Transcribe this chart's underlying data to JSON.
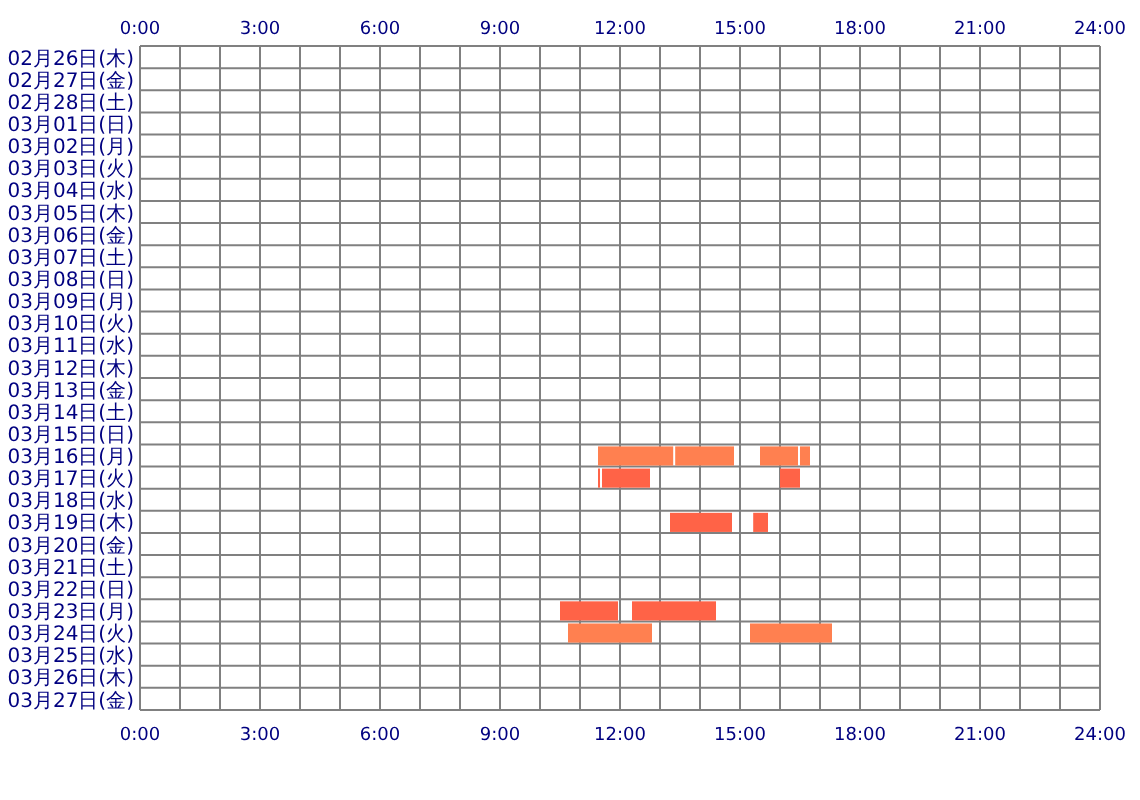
{
  "chart_data": {
    "type": "bar",
    "orientation": "horizontal",
    "grid": true,
    "categories": [
      "02月26日(木)",
      "02月27日(金)",
      "02月28日(土)",
      "03月01日(日)",
      "03月02日(月)",
      "03月03日(火)",
      "03月04日(水)",
      "03月05日(木)",
      "03月06日(金)",
      "03月07日(土)",
      "03月08日(日)",
      "03月09日(月)",
      "03月10日(火)",
      "03月11日(水)",
      "03月12日(木)",
      "03月13日(金)",
      "03月14日(土)",
      "03月15日(日)",
      "03月16日(月)",
      "03月17日(火)",
      "03月18日(水)",
      "03月19日(木)",
      "03月20日(金)",
      "03月21日(土)",
      "03月22日(日)",
      "03月23日(月)",
      "03月24日(火)",
      "03月25日(水)",
      "03月26日(木)",
      "03月27日(金)"
    ],
    "xlim": [
      0,
      24
    ],
    "xticks": [
      {
        "value": 0,
        "label": "0:00"
      },
      {
        "value": 1,
        "label": null
      },
      {
        "value": 2,
        "label": null
      },
      {
        "value": 3,
        "label": "3:00"
      },
      {
        "value": 4,
        "label": null
      },
      {
        "value": 5,
        "label": null
      },
      {
        "value": 6,
        "label": "6:00"
      },
      {
        "value": 7,
        "label": null
      },
      {
        "value": 8,
        "label": null
      },
      {
        "value": 9,
        "label": "9:00"
      },
      {
        "value": 10,
        "label": null
      },
      {
        "value": 11,
        "label": null
      },
      {
        "value": 12,
        "label": "12:00"
      },
      {
        "value": 13,
        "label": null
      },
      {
        "value": 14,
        "label": null
      },
      {
        "value": 15,
        "label": "15:00"
      },
      {
        "value": 16,
        "label": null
      },
      {
        "value": 17,
        "label": null
      },
      {
        "value": 18,
        "label": "18:00"
      },
      {
        "value": 19,
        "label": null
      },
      {
        "value": 20,
        "label": null
      },
      {
        "value": 21,
        "label": "21:00"
      },
      {
        "value": 22,
        "label": null
      },
      {
        "value": 23,
        "label": null
      },
      {
        "value": 24,
        "label": "24:00"
      }
    ],
    "x2lim": [
      0,
      24
    ],
    "x2ticks": [
      {
        "value": 0,
        "label": "0:00"
      },
      {
        "value": 3,
        "label": "3:00"
      },
      {
        "value": 6,
        "label": "6:00"
      },
      {
        "value": 9,
        "label": "9:00"
      },
      {
        "value": 12,
        "label": "12:00"
      },
      {
        "value": 15,
        "label": "15:00"
      },
      {
        "value": 18,
        "label": "18:00"
      },
      {
        "value": 21,
        "label": "21:00"
      },
      {
        "value": 24,
        "label": "24:00"
      }
    ],
    "series": [
      {
        "values": [
          null,
          null,
          null,
          null,
          null,
          null,
          null,
          null,
          null,
          null,
          null,
          null,
          null,
          null,
          null,
          null,
          null,
          null,
          1.88,
          0.05,
          null,
          1.55,
          null,
          null,
          null,
          1.45,
          2.1,
          null,
          null,
          null
        ],
        "base": [
          null,
          null,
          null,
          null,
          null,
          null,
          null,
          null,
          null,
          null,
          null,
          null,
          null,
          null,
          null,
          null,
          null,
          null,
          11.45,
          11.45,
          null,
          13.25,
          null,
          null,
          null,
          10.5,
          10.7,
          null,
          null,
          null
        ],
        "colors": [
          null,
          null,
          null,
          null,
          null,
          null,
          null,
          null,
          null,
          null,
          null,
          null,
          null,
          null,
          null,
          null,
          null,
          null,
          "#ff8050",
          "#ff6347",
          null,
          "#ff6347",
          null,
          null,
          null,
          "#ff6347",
          "#ff8050",
          null,
          null,
          null
        ]
      },
      {
        "values": [
          null,
          null,
          null,
          null,
          null,
          null,
          null,
          null,
          null,
          null,
          null,
          null,
          null,
          null,
          null,
          null,
          null,
          null,
          1.47,
          1.2,
          null,
          0.37,
          null,
          null,
          null,
          2.1,
          2.05,
          null,
          null,
          null
        ],
        "base": [
          null,
          null,
          null,
          null,
          null,
          null,
          null,
          null,
          null,
          null,
          null,
          null,
          null,
          null,
          null,
          null,
          null,
          null,
          13.38,
          11.55,
          null,
          15.33,
          null,
          null,
          null,
          12.3,
          15.25,
          null,
          null,
          null
        ],
        "colors": [
          null,
          null,
          null,
          null,
          null,
          null,
          null,
          null,
          null,
          null,
          null,
          null,
          null,
          null,
          null,
          null,
          null,
          null,
          "#ff8050",
          "#ff6347",
          null,
          "#ff6347",
          null,
          null,
          null,
          "#ff6347",
          "#ff8050",
          null,
          null,
          null
        ]
      },
      {
        "values": [
          null,
          null,
          null,
          null,
          null,
          null,
          null,
          null,
          null,
          null,
          null,
          null,
          null,
          null,
          null,
          null,
          null,
          null,
          0.95,
          0.5,
          null,
          null,
          null,
          null,
          null,
          null,
          null,
          null,
          null,
          null
        ],
        "base": [
          null,
          null,
          null,
          null,
          null,
          null,
          null,
          null,
          null,
          null,
          null,
          null,
          null,
          null,
          null,
          null,
          null,
          null,
          15.5,
          16.0,
          null,
          null,
          null,
          null,
          null,
          null,
          null,
          null,
          null,
          null
        ],
        "colors": [
          null,
          null,
          null,
          null,
          null,
          null,
          null,
          null,
          null,
          null,
          null,
          null,
          null,
          null,
          null,
          null,
          null,
          null,
          "#ff8050",
          "#ff6347",
          null,
          null,
          null,
          null,
          null,
          null,
          null,
          null,
          null,
          null
        ]
      },
      {
        "values": [
          null,
          null,
          null,
          null,
          null,
          null,
          null,
          null,
          null,
          null,
          null,
          null,
          null,
          null,
          null,
          null,
          null,
          null,
          0.25,
          null,
          null,
          null,
          null,
          null,
          null,
          null,
          null,
          null,
          null,
          null
        ],
        "base": [
          null,
          null,
          null,
          null,
          null,
          null,
          null,
          null,
          null,
          null,
          null,
          null,
          null,
          null,
          null,
          null,
          null,
          null,
          16.5,
          null,
          null,
          null,
          null,
          null,
          null,
          null,
          null,
          null,
          null,
          null
        ],
        "colors": [
          null,
          null,
          null,
          null,
          null,
          null,
          null,
          null,
          null,
          null,
          null,
          null,
          null,
          null,
          null,
          null,
          null,
          null,
          "#ff8050",
          null,
          null,
          null,
          null,
          null,
          null,
          null,
          null,
          null,
          null,
          null
        ]
      }
    ]
  }
}
